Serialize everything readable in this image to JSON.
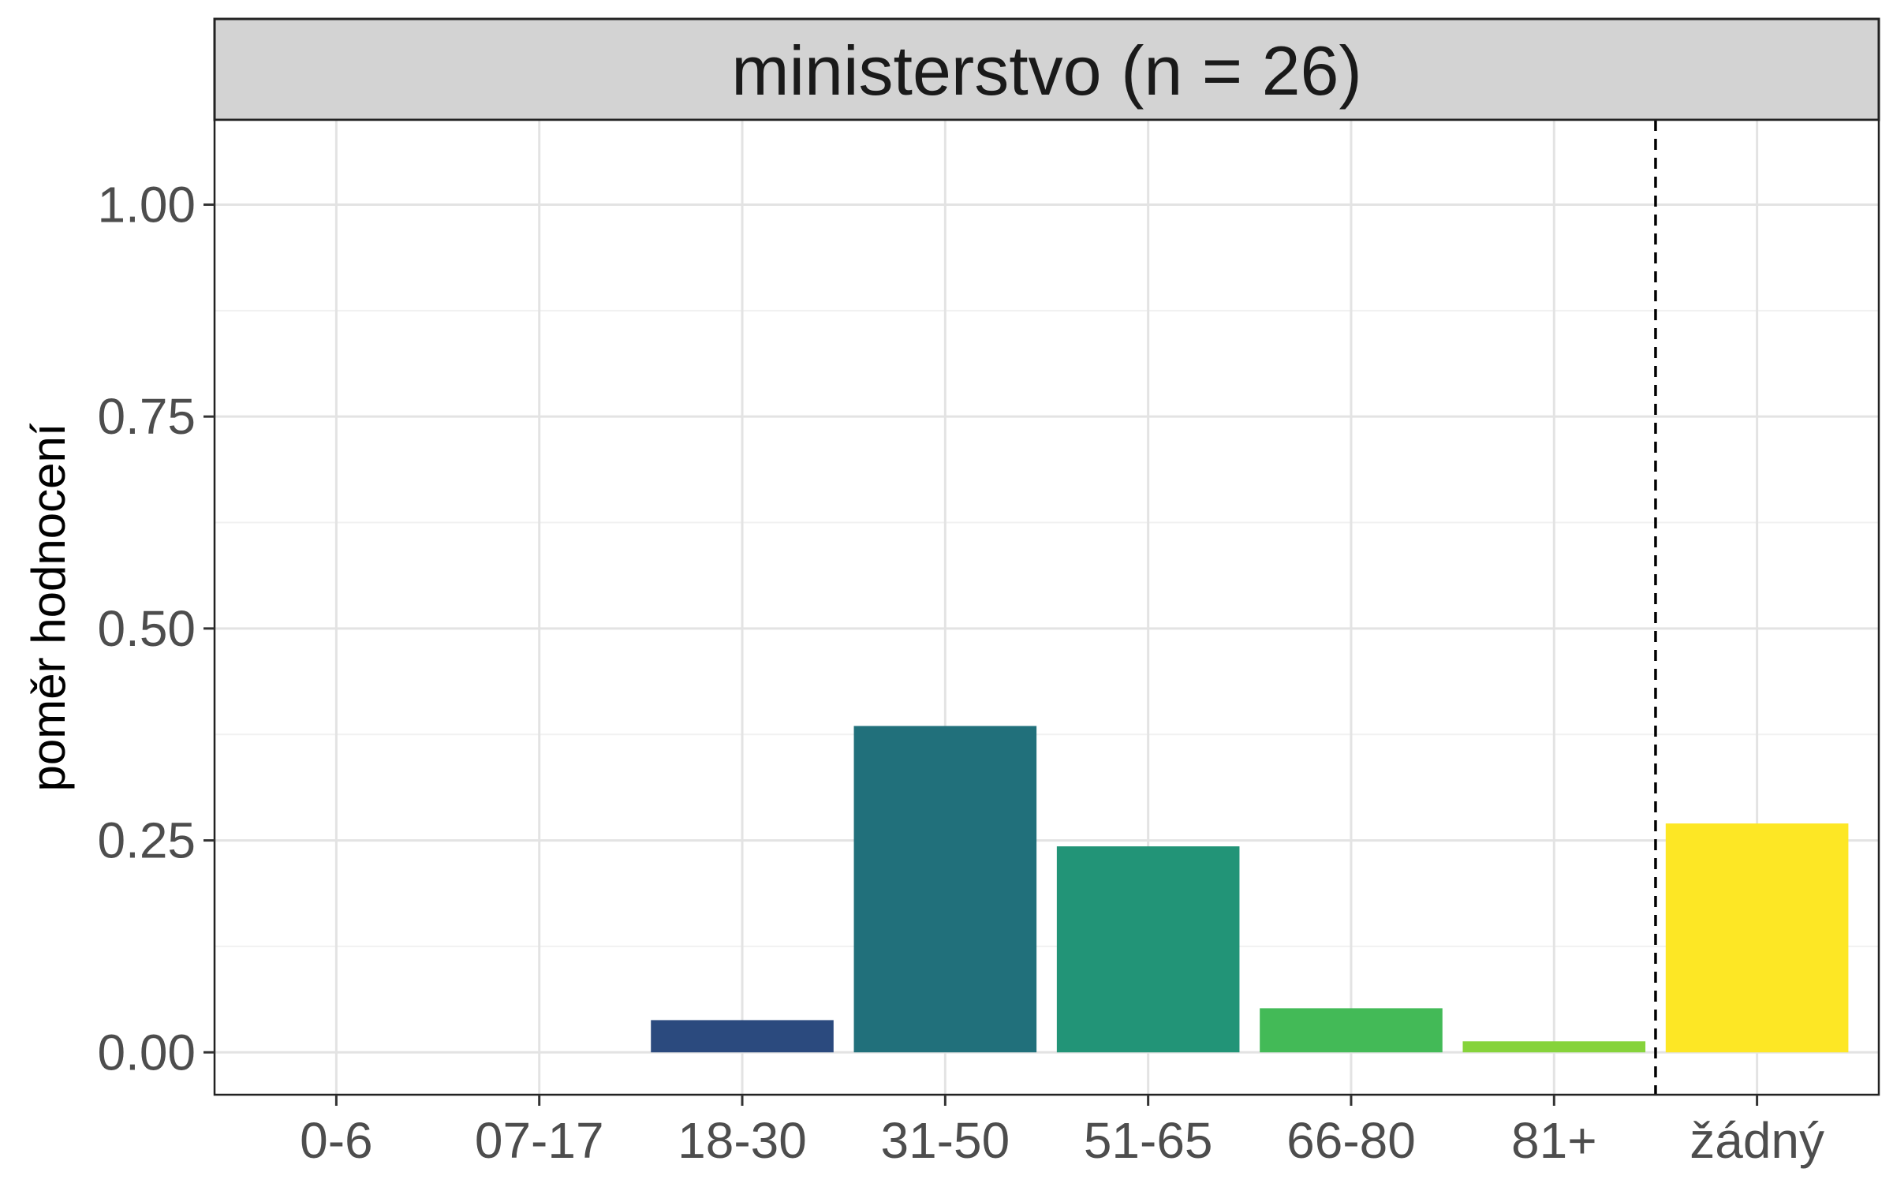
{
  "chart_data": {
    "type": "bar",
    "facet_title": "ministerstvo (n = 26)",
    "ylabel": "poměr hodnocení",
    "xlabel": "",
    "categories": [
      "0-6",
      "07-17",
      "18-30",
      "31-50",
      "51-65",
      "66-80",
      "81+",
      "žádný"
    ],
    "values": [
      0,
      0,
      0.038,
      0.385,
      0.243,
      0.052,
      0.013,
      0.27
    ],
    "colors": [
      "#440154",
      "#46337E",
      "#2B4A7E",
      "#21707B",
      "#229477",
      "#43BA57",
      "#86D33B",
      "#FDE725"
    ],
    "ylim": [
      -0.05,
      1.1
    ],
    "yticks": [
      0,
      0.25,
      0.5,
      0.75,
      1
    ],
    "ytick_labels": [
      "0.00",
      "0.25",
      "0.50",
      "0.75",
      "1.00"
    ],
    "separator_after_category": "81+",
    "grid": true,
    "legend": "none"
  }
}
